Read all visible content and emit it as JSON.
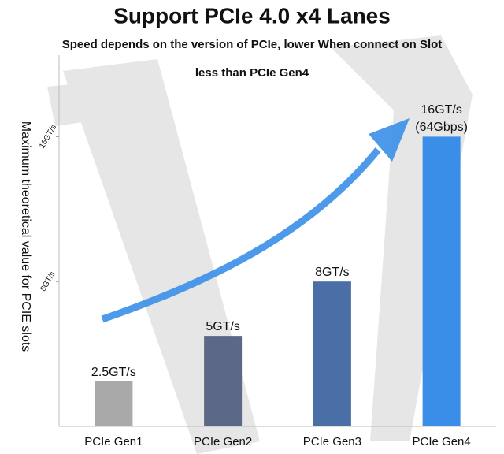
{
  "chart_data": {
    "type": "bar",
    "title": "Support PCIe 4.0 x4 Lanes",
    "subtitle": [
      "Speed depends on the version of PCIe, lower When connect on Slot",
      "less than PCIe Gen4"
    ],
    "y_label": "Maximum theoretical value for PCIE slots",
    "categories": [
      "PCIe Gen1",
      "PCIe Gen2",
      "PCIe Gen3",
      "PCIe Gen4"
    ],
    "values": [
      2.5,
      5,
      8,
      16
    ],
    "value_labels": [
      "2.5GT/s",
      "5GT/s",
      "8GT/s",
      "16GT/s (64Gbps)"
    ],
    "colors": [
      "#a9a9a9",
      "#5b6886",
      "#4a6ea6",
      "#3a8ee8"
    ],
    "ylim": [
      0,
      20.5
    ],
    "yticks": [
      {
        "value": 8,
        "label": "8GT/s"
      },
      {
        "value": 16,
        "label": "16GT/s"
      }
    ],
    "grid": false
  }
}
